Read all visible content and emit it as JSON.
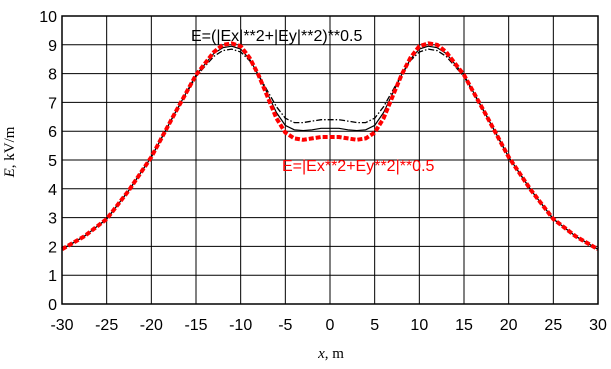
{
  "chart_data": {
    "type": "line",
    "title": "",
    "xlabel": "x, m",
    "xlabel_italic": "x",
    "xlabel_rest": ", m",
    "ylabel": "E, kV/m",
    "ylabel_italic": "E",
    "ylabel_rest": ", kV/m",
    "xlim": [
      -30,
      30
    ],
    "ylim": [
      0,
      10
    ],
    "xticks": [
      -30,
      -25,
      -20,
      -15,
      -10,
      -5,
      0,
      5,
      10,
      15,
      20,
      25,
      30
    ],
    "yticks": [
      0,
      1,
      2,
      3,
      4,
      5,
      6,
      7,
      8,
      9,
      10
    ],
    "grid": true,
    "annotations": [
      {
        "text": "E=(|Ex|**2+|Ey|**2)**0.5",
        "color": "#000000"
      },
      {
        "text": "E=|Ex**2+Ey**2|**0.5",
        "color": "#ff0000"
      }
    ],
    "series": [
      {
        "color": "#ff0000",
        "style": "dashed-thick",
        "x": [
          -30,
          -27.5,
          -25,
          -22.5,
          -20,
          -17.5,
          -15,
          -13,
          -12,
          -11,
          -10,
          -9,
          -8,
          -7,
          -6,
          -5,
          -4,
          -3,
          -2,
          -1,
          0,
          1,
          2,
          3,
          4,
          5,
          6,
          7,
          8,
          9,
          10,
          11,
          12,
          13,
          15,
          17.5,
          20,
          22.5,
          25,
          27.5,
          30
        ],
        "y": [
          1.9,
          2.35,
          2.95,
          3.95,
          5.1,
          6.55,
          7.95,
          8.75,
          9.0,
          9.05,
          8.95,
          8.55,
          7.95,
          7.2,
          6.45,
          5.95,
          5.75,
          5.7,
          5.75,
          5.8,
          5.8,
          5.8,
          5.75,
          5.7,
          5.75,
          5.95,
          6.45,
          7.2,
          7.95,
          8.55,
          8.95,
          9.05,
          9.0,
          8.75,
          7.95,
          6.55,
          5.1,
          3.95,
          2.95,
          2.35,
          1.9
        ]
      },
      {
        "color": "#000000",
        "style": "solid",
        "x": [
          -30,
          -27.5,
          -25,
          -22.5,
          -20,
          -17.5,
          -15,
          -13,
          -12,
          -11,
          -10,
          -9,
          -8,
          -7,
          -6,
          -5,
          -4,
          -3,
          -2,
          -1,
          0,
          1,
          2,
          3,
          4,
          5,
          6,
          7,
          8,
          9,
          10,
          11,
          12,
          13,
          15,
          17.5,
          20,
          22.5,
          25,
          27.5,
          30
        ],
        "y": [
          1.9,
          2.35,
          2.95,
          3.95,
          5.1,
          6.55,
          7.95,
          8.7,
          8.9,
          8.95,
          8.85,
          8.5,
          7.95,
          7.3,
          6.65,
          6.2,
          6.05,
          6.02,
          6.05,
          6.1,
          6.1,
          6.1,
          6.05,
          6.02,
          6.05,
          6.2,
          6.65,
          7.3,
          7.95,
          8.5,
          8.85,
          8.95,
          8.9,
          8.7,
          7.95,
          6.55,
          5.1,
          3.95,
          2.95,
          2.35,
          1.9
        ]
      },
      {
        "color": "#000000",
        "style": "dash-dot",
        "x": [
          -30,
          -27.5,
          -25,
          -22.5,
          -20,
          -17.5,
          -15,
          -13,
          -12,
          -11,
          -10,
          -9,
          -8,
          -7,
          -6,
          -5,
          -4,
          -3,
          -2,
          -1,
          0,
          1,
          2,
          3,
          4,
          5,
          6,
          7,
          8,
          9,
          10,
          11,
          12,
          13,
          15,
          17.5,
          20,
          22.5,
          25,
          27.5,
          30
        ],
        "y": [
          1.9,
          2.35,
          2.95,
          3.95,
          5.1,
          6.55,
          7.9,
          8.6,
          8.8,
          8.85,
          8.75,
          8.45,
          7.95,
          7.4,
          6.85,
          6.45,
          6.3,
          6.3,
          6.35,
          6.4,
          6.4,
          6.4,
          6.35,
          6.3,
          6.3,
          6.45,
          6.85,
          7.4,
          7.95,
          8.45,
          8.75,
          8.85,
          8.8,
          8.6,
          7.9,
          6.55,
          5.1,
          3.95,
          2.95,
          2.35,
          1.9
        ]
      }
    ]
  }
}
